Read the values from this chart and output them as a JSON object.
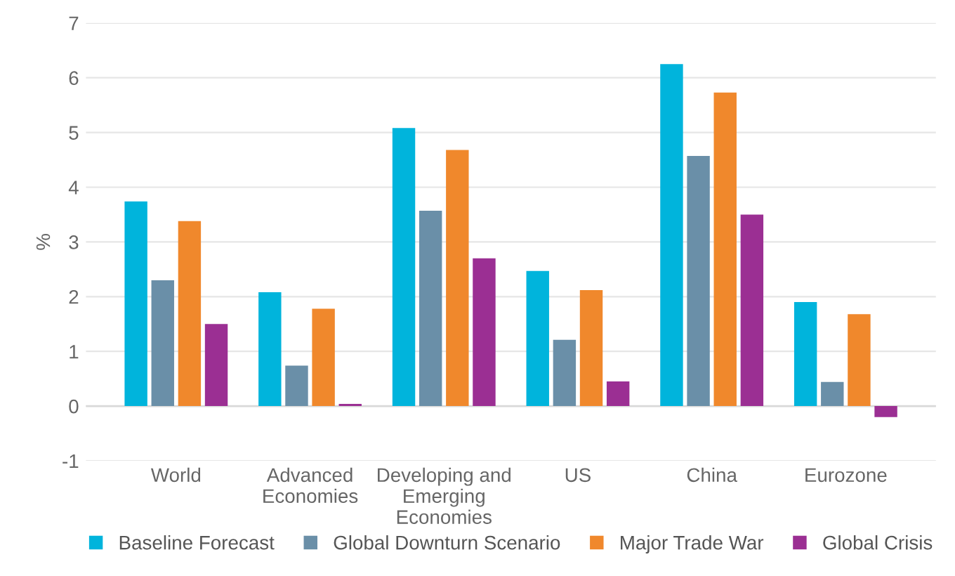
{
  "chart_data": {
    "type": "bar",
    "ylabel": "%",
    "categories": [
      "World",
      "Advanced\nEconomies",
      "Developing and\nEmerging\nEconomies",
      "US",
      "China",
      "Eurozone"
    ],
    "series": [
      {
        "name": "Baseline Forecast",
        "color": "#00b4dc",
        "values": [
          3.74,
          2.08,
          5.08,
          2.47,
          6.25,
          1.9
        ]
      },
      {
        "name": "Global Downturn Scenario",
        "color": "#6a8fa8",
        "values": [
          2.3,
          0.74,
          3.57,
          1.21,
          4.57,
          0.44
        ]
      },
      {
        "name": "Major Trade War",
        "color": "#f0882c",
        "values": [
          3.38,
          1.78,
          4.68,
          2.12,
          5.73,
          1.68
        ]
      },
      {
        "name": "Global Crisis",
        "color": "#9b2f93",
        "values": [
          1.5,
          0.04,
          2.7,
          0.45,
          3.5,
          -0.2
        ]
      }
    ],
    "ylim": [
      -1,
      7
    ],
    "yticks": [
      -1,
      0,
      1,
      2,
      3,
      4,
      5,
      6,
      7
    ],
    "grid": "y",
    "legend": "bottom"
  }
}
